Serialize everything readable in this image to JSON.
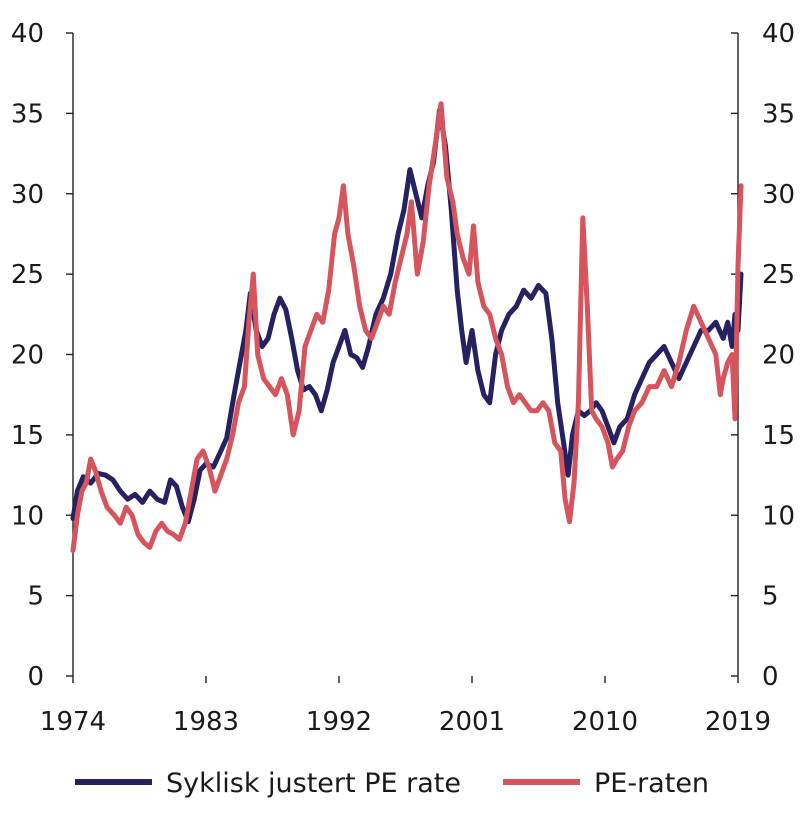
{
  "chart_data": {
    "type": "line",
    "title": "",
    "xlabel": "",
    "ylabel": "",
    "xlim": [
      1974,
      2019
    ],
    "ylim": [
      0,
      40
    ],
    "x_ticks": [
      "1974",
      "1983",
      "1992",
      "2001",
      "2010",
      "2019"
    ],
    "y_ticks": [
      "0",
      "5",
      "10",
      "15",
      "20",
      "25",
      "30",
      "35",
      "40"
    ],
    "right_axis": true,
    "grid": false,
    "legend_position": "bottom",
    "series": [
      {
        "name": "Syklisk justert PE rate",
        "color": "#262262",
        "points": [
          [
            1974.0,
            9.8
          ],
          [
            1974.3,
            11.5
          ],
          [
            1974.7,
            12.4
          ],
          [
            1975.2,
            12.0
          ],
          [
            1975.7,
            12.6
          ],
          [
            1976.2,
            12.5
          ],
          [
            1976.7,
            12.2
          ],
          [
            1977.2,
            11.5
          ],
          [
            1977.7,
            11.0
          ],
          [
            1978.2,
            11.3
          ],
          [
            1978.7,
            10.8
          ],
          [
            1979.2,
            11.5
          ],
          [
            1979.7,
            11.0
          ],
          [
            1980.2,
            10.8
          ],
          [
            1980.6,
            12.2
          ],
          [
            1981.0,
            11.8
          ],
          [
            1981.4,
            10.5
          ],
          [
            1981.8,
            9.6
          ],
          [
            1982.2,
            11.0
          ],
          [
            1982.6,
            12.8
          ],
          [
            1983.0,
            13.2
          ],
          [
            1983.5,
            13.0
          ],
          [
            1984.0,
            14.0
          ],
          [
            1984.4,
            14.8
          ],
          [
            1984.9,
            17.5
          ],
          [
            1985.3,
            19.5
          ],
          [
            1985.7,
            21.5
          ],
          [
            1986.0,
            23.8
          ],
          [
            1986.4,
            21.5
          ],
          [
            1986.8,
            20.5
          ],
          [
            1987.2,
            21.0
          ],
          [
            1987.6,
            22.5
          ],
          [
            1988.0,
            23.5
          ],
          [
            1988.4,
            22.8
          ],
          [
            1988.8,
            21.0
          ],
          [
            1989.2,
            19.0
          ],
          [
            1989.6,
            17.8
          ],
          [
            1990.0,
            18.0
          ],
          [
            1990.4,
            17.5
          ],
          [
            1990.8,
            16.5
          ],
          [
            1991.2,
            17.8
          ],
          [
            1991.6,
            19.5
          ],
          [
            1992.0,
            20.5
          ],
          [
            1992.4,
            21.5
          ],
          [
            1992.8,
            20.0
          ],
          [
            1993.2,
            19.8
          ],
          [
            1993.6,
            19.2
          ],
          [
            1994.0,
            20.5
          ],
          [
            1994.5,
            22.5
          ],
          [
            1995.0,
            23.5
          ],
          [
            1995.5,
            25.0
          ],
          [
            1996.0,
            27.5
          ],
          [
            1996.4,
            29.0
          ],
          [
            1996.8,
            31.5
          ],
          [
            1997.2,
            30.0
          ],
          [
            1997.6,
            28.5
          ],
          [
            1998.0,
            30.5
          ],
          [
            1998.4,
            32.0
          ],
          [
            1998.8,
            35.2
          ],
          [
            1999.2,
            33.0
          ],
          [
            1999.6,
            29.0
          ],
          [
            2000.0,
            24.0
          ],
          [
            2000.3,
            21.5
          ],
          [
            2000.6,
            19.5
          ],
          [
            2001.0,
            21.5
          ],
          [
            2001.4,
            19.0
          ],
          [
            2001.8,
            17.5
          ],
          [
            2002.2,
            17.0
          ],
          [
            2002.6,
            20.0
          ],
          [
            2003.0,
            21.5
          ],
          [
            2003.5,
            22.5
          ],
          [
            2004.0,
            23.0
          ],
          [
            2004.5,
            24.0
          ],
          [
            2005.0,
            23.5
          ],
          [
            2005.5,
            24.3
          ],
          [
            2006.0,
            23.8
          ],
          [
            2006.4,
            21.0
          ],
          [
            2006.8,
            17.0
          ],
          [
            2007.2,
            14.5
          ],
          [
            2007.5,
            12.5
          ],
          [
            2007.8,
            15.0
          ],
          [
            2008.2,
            16.5
          ],
          [
            2008.6,
            16.2
          ],
          [
            2009.0,
            16.5
          ],
          [
            2009.4,
            17.0
          ],
          [
            2009.8,
            16.5
          ],
          [
            2010.2,
            15.5
          ],
          [
            2010.6,
            14.5
          ],
          [
            2011.0,
            15.5
          ],
          [
            2011.5,
            16.0
          ],
          [
            2012.0,
            17.5
          ],
          [
            2012.5,
            18.5
          ],
          [
            2013.0,
            19.5
          ],
          [
            2013.5,
            20.0
          ],
          [
            2014.0,
            20.5
          ],
          [
            2014.5,
            19.5
          ],
          [
            2015.0,
            18.5
          ],
          [
            2015.5,
            19.5
          ],
          [
            2016.0,
            20.5
          ],
          [
            2016.5,
            21.5
          ],
          [
            2017.0,
            21.5
          ],
          [
            2017.5,
            22.0
          ],
          [
            2018.0,
            21.0
          ],
          [
            2018.3,
            22.0
          ],
          [
            2018.6,
            20.5
          ],
          [
            2018.8,
            22.5
          ],
          [
            2019.0,
            21.5
          ],
          [
            2019.2,
            25.0
          ]
        ]
      },
      {
        "name": "PE-raten",
        "color": "#d6545c",
        "points": [
          [
            1974.0,
            7.8
          ],
          [
            1974.3,
            10.0
          ],
          [
            1974.6,
            11.5
          ],
          [
            1974.9,
            12.0
          ],
          [
            1975.2,
            13.5
          ],
          [
            1975.5,
            12.8
          ],
          [
            1975.9,
            11.5
          ],
          [
            1976.3,
            10.5
          ],
          [
            1976.8,
            10.0
          ],
          [
            1977.2,
            9.5
          ],
          [
            1977.6,
            10.5
          ],
          [
            1978.0,
            10.0
          ],
          [
            1978.4,
            8.8
          ],
          [
            1978.8,
            8.3
          ],
          [
            1979.2,
            8.0
          ],
          [
            1979.6,
            9.0
          ],
          [
            1980.0,
            9.5
          ],
          [
            1980.4,
            9.0
          ],
          [
            1980.8,
            8.8
          ],
          [
            1981.2,
            8.5
          ],
          [
            1981.6,
            9.5
          ],
          [
            1982.0,
            11.5
          ],
          [
            1982.4,
            13.5
          ],
          [
            1982.8,
            14.0
          ],
          [
            1983.2,
            13.0
          ],
          [
            1983.6,
            11.5
          ],
          [
            1984.0,
            12.5
          ],
          [
            1984.4,
            13.5
          ],
          [
            1984.8,
            15.0
          ],
          [
            1985.2,
            17.0
          ],
          [
            1985.6,
            18.0
          ],
          [
            1985.9,
            22.0
          ],
          [
            1986.2,
            25.0
          ],
          [
            1986.5,
            20.0
          ],
          [
            1986.9,
            18.5
          ],
          [
            1987.3,
            18.0
          ],
          [
            1987.7,
            17.5
          ],
          [
            1988.1,
            18.5
          ],
          [
            1988.5,
            17.5
          ],
          [
            1988.9,
            15.0
          ],
          [
            1989.3,
            16.5
          ],
          [
            1989.7,
            20.5
          ],
          [
            1990.1,
            21.5
          ],
          [
            1990.5,
            22.5
          ],
          [
            1990.9,
            22.0
          ],
          [
            1991.3,
            24.0
          ],
          [
            1991.7,
            27.5
          ],
          [
            1992.0,
            28.5
          ],
          [
            1992.3,
            30.5
          ],
          [
            1992.6,
            27.5
          ],
          [
            1993.0,
            25.5
          ],
          [
            1993.4,
            23.0
          ],
          [
            1993.8,
            21.5
          ],
          [
            1994.2,
            21.0
          ],
          [
            1994.6,
            22.0
          ],
          [
            1995.0,
            23.0
          ],
          [
            1995.4,
            22.5
          ],
          [
            1995.8,
            24.5
          ],
          [
            1996.2,
            26.0
          ],
          [
            1996.6,
            27.5
          ],
          [
            1996.9,
            29.5
          ],
          [
            1997.3,
            25.0
          ],
          [
            1997.7,
            27.0
          ],
          [
            1998.1,
            30.5
          ],
          [
            1998.5,
            33.0
          ],
          [
            1998.9,
            35.6
          ],
          [
            1999.3,
            31.0
          ],
          [
            1999.7,
            29.5
          ],
          [
            2000.0,
            27.5
          ],
          [
            2000.4,
            26.0
          ],
          [
            2000.8,
            25.0
          ],
          [
            2001.1,
            28.0
          ],
          [
            2001.4,
            24.5
          ],
          [
            2001.8,
            23.0
          ],
          [
            2002.2,
            22.5
          ],
          [
            2002.6,
            21.0
          ],
          [
            2003.0,
            20.0
          ],
          [
            2003.4,
            18.0
          ],
          [
            2003.8,
            17.0
          ],
          [
            2004.2,
            17.5
          ],
          [
            2004.6,
            17.0
          ],
          [
            2005.0,
            16.5
          ],
          [
            2005.4,
            16.5
          ],
          [
            2005.8,
            17.0
          ],
          [
            2006.2,
            16.5
          ],
          [
            2006.6,
            14.5
          ],
          [
            2007.0,
            14.0
          ],
          [
            2007.3,
            11.0
          ],
          [
            2007.6,
            9.6
          ],
          [
            2007.9,
            12.0
          ],
          [
            2008.2,
            17.0
          ],
          [
            2008.5,
            28.5
          ],
          [
            2008.8,
            23.0
          ],
          [
            2009.1,
            16.5
          ],
          [
            2009.4,
            16.0
          ],
          [
            2009.8,
            15.5
          ],
          [
            2010.2,
            14.5
          ],
          [
            2010.5,
            13.0
          ],
          [
            2010.8,
            13.5
          ],
          [
            2011.2,
            14.0
          ],
          [
            2011.6,
            15.5
          ],
          [
            2012.0,
            16.5
          ],
          [
            2012.5,
            17.0
          ],
          [
            2013.0,
            18.0
          ],
          [
            2013.5,
            18.0
          ],
          [
            2014.0,
            19.0
          ],
          [
            2014.5,
            18.0
          ],
          [
            2015.0,
            19.5
          ],
          [
            2015.5,
            21.5
          ],
          [
            2016.0,
            23.0
          ],
          [
            2016.5,
            22.0
          ],
          [
            2017.0,
            21.0
          ],
          [
            2017.5,
            20.0
          ],
          [
            2017.8,
            17.5
          ],
          [
            2018.0,
            18.5
          ],
          [
            2018.3,
            19.5
          ],
          [
            2018.6,
            20.0
          ],
          [
            2018.8,
            16.0
          ],
          [
            2019.0,
            25.5
          ],
          [
            2019.2,
            30.5
          ]
        ]
      }
    ]
  },
  "legend": {
    "items": [
      {
        "label": "Syklisk justert PE rate",
        "color": "#262262"
      },
      {
        "label": "PE-raten",
        "color": "#d6545c"
      }
    ]
  }
}
